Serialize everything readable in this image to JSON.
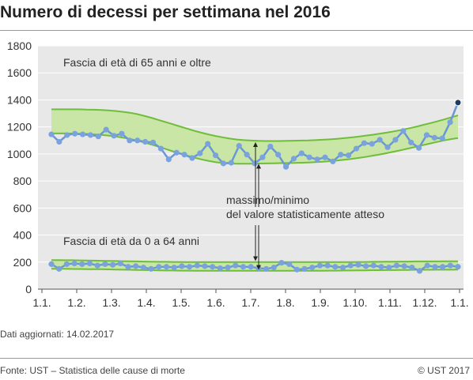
{
  "title": "Numero di decessi per settimana nel 2016",
  "updated": "Dati aggiornati: 14.02.2017",
  "source": "Fonte: UST – Statistica delle cause di morte",
  "copyright": "© UST 2017",
  "colors": {
    "band": "#c9e6a6",
    "band_line": "#6fbd3a",
    "series": "#6b96d6",
    "marker": "#7aa3dd",
    "last_marker": "#1f3a5f",
    "plot_bg": "#e8e8e8",
    "grid": "#ffffff"
  },
  "chart_data": {
    "type": "line",
    "ylim": [
      0,
      1800
    ],
    "yticks": [
      0,
      200,
      400,
      600,
      800,
      1000,
      1200,
      1400,
      1600,
      1800
    ],
    "xticks": [
      "1.1.",
      "1.2.",
      "1.3.",
      "1.4.",
      "1.5.",
      "1.6.",
      "1.7.",
      "1.8.",
      "1.9.",
      "1.10.",
      "1.11.",
      "1.12.",
      "1.1."
    ],
    "grid": "horizontal",
    "annotation": {
      "line1": "massimo/minimo",
      "line2": "del valore statisticamente atteso"
    },
    "series": [
      {
        "name": "Fascia di età di 65 anni e oltre",
        "band_max": [
          1330,
          1330,
          1330,
          1330,
          1330,
          1328,
          1327,
          1325,
          1322,
          1318,
          1312,
          1305,
          1295,
          1282,
          1268,
          1252,
          1236,
          1220,
          1204,
          1188,
          1172,
          1158,
          1145,
          1133,
          1123,
          1114,
          1107,
          1102,
          1099,
          1097,
          1096,
          1096,
          1096,
          1097,
          1098,
          1099,
          1100,
          1102,
          1105,
          1108,
          1112,
          1117,
          1122,
          1128,
          1135,
          1142,
          1150,
          1158,
          1167,
          1177,
          1188,
          1200,
          1213,
          1226,
          1240,
          1255,
          1270,
          1285
        ],
        "band_min": [
          1152,
          1152,
          1152,
          1151,
          1150,
          1148,
          1145,
          1141,
          1136,
          1129,
          1121,
          1111,
          1099,
          1085,
          1070,
          1054,
          1037,
          1020,
          1004,
          988,
          973,
          960,
          949,
          940,
          934,
          930,
          928,
          928,
          928,
          929,
          930,
          931,
          932,
          933,
          934,
          935,
          937,
          939,
          942,
          946,
          951,
          957,
          963,
          970,
          978,
          987,
          996,
          1006,
          1017,
          1028,
          1040,
          1052,
          1064,
          1076,
          1088,
          1100,
          1110,
          1118
        ],
        "values": [
          1145,
          1090,
          1140,
          1150,
          1145,
          1140,
          1130,
          1180,
          1135,
          1150,
          1100,
          1100,
          1090,
          1085,
          1040,
          960,
          1010,
          995,
          970,
          1005,
          1075,
          990,
          930,
          935,
          1060,
          995,
          930,
          975,
          1055,
          995,
          905,
          965,
          1005,
          975,
          960,
          975,
          945,
          995,
          990,
          1040,
          1080,
          1075,
          1105,
          1050,
          1105,
          1170,
          1085,
          1045,
          1140,
          1120,
          1115,
          1235,
          1380
        ]
      },
      {
        "name": "Fascia di età da 0 a 64 anni",
        "band_max": [
          215,
          215,
          214,
          214,
          213,
          212,
          211,
          210,
          209,
          208,
          207,
          206,
          205,
          204,
          203,
          202,
          202,
          201,
          201,
          200,
          200,
          200,
          200,
          200,
          200,
          200,
          200,
          200,
          200,
          200,
          200,
          200,
          200,
          200,
          200,
          200,
          200,
          200,
          200,
          200,
          200,
          200,
          200,
          201,
          201,
          202,
          202,
          203,
          203,
          204,
          204,
          205,
          205,
          205,
          205,
          206,
          206,
          206
        ],
        "band_min": [
          150,
          150,
          150,
          149,
          149,
          148,
          148,
          147,
          146,
          145,
          144,
          143,
          142,
          141,
          140,
          139,
          138,
          138,
          137,
          137,
          136,
          136,
          136,
          136,
          136,
          136,
          136,
          136,
          136,
          136,
          136,
          136,
          136,
          136,
          136,
          136,
          136,
          136,
          136,
          137,
          137,
          138,
          138,
          139,
          139,
          140,
          140,
          141,
          141,
          142,
          142,
          143,
          143,
          143,
          144,
          144,
          144,
          145
        ],
        "values": [
          185,
          150,
          185,
          190,
          185,
          190,
          175,
          185,
          180,
          190,
          165,
          170,
          160,
          150,
          165,
          165,
          160,
          170,
          165,
          175,
          170,
          165,
          155,
          160,
          175,
          165,
          165,
          155,
          150,
          160,
          195,
          185,
          145,
          150,
          160,
          175,
          175,
          165,
          160,
          175,
          180,
          170,
          175,
          165,
          160,
          175,
          170,
          160,
          135,
          175,
          165,
          165,
          175,
          165
        ]
      }
    ]
  }
}
